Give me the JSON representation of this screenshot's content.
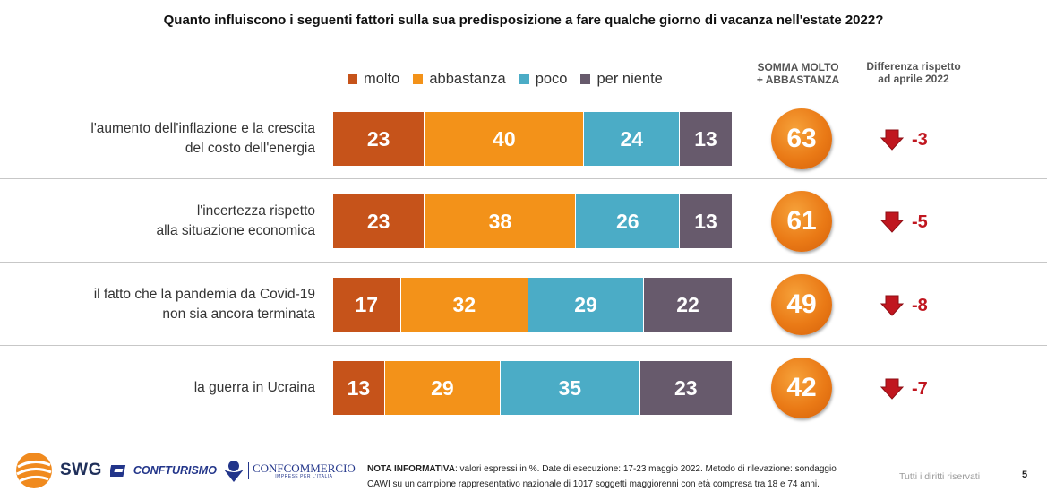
{
  "title": "Quanto influiscono i seguenti fattori sulla sua predisposizione a fare qualche giorno di vacanza nell'estate 2022?",
  "legend": [
    {
      "label": "molto",
      "color": "#c6531a"
    },
    {
      "label": "abbastanza",
      "color": "#f39219"
    },
    {
      "label": "poco",
      "color": "#4bacc6"
    },
    {
      "label": "per niente",
      "color": "#675a6c"
    }
  ],
  "column_headers": {
    "sum": [
      "SOMMA MOLTO",
      "+ ABBASTANZA"
    ],
    "diff": [
      "Differenza rispetto",
      "ad aprile 2022"
    ]
  },
  "chart_data": {
    "type": "bar",
    "orientation": "horizontal",
    "stacked": true,
    "categories": [
      [
        "l'aumento dell'inflazione e la crescita",
        "del costo dell'energia"
      ],
      [
        "l'incertezza rispetto",
        "alla situazione economica"
      ],
      [
        "il fatto che la pandemia da Covid-19",
        "non sia ancora terminata"
      ],
      [
        "la guerra in Ucraina"
      ]
    ],
    "series": [
      {
        "name": "molto",
        "values": [
          23,
          23,
          17,
          13
        ]
      },
      {
        "name": "abbastanza",
        "values": [
          40,
          38,
          32,
          29
        ]
      },
      {
        "name": "poco",
        "values": [
          24,
          26,
          29,
          35
        ]
      },
      {
        "name": "per niente",
        "values": [
          13,
          13,
          22,
          23
        ]
      }
    ],
    "sum_molto_abbastanza": [
      63,
      61,
      49,
      42
    ],
    "diff_vs_april_2022": [
      "-3",
      "-5",
      "-8",
      "-7"
    ],
    "xlim": [
      0,
      100
    ],
    "unit": "%"
  },
  "footer": {
    "swg": "SWG",
    "confturismo": "CONFTURISMO",
    "confcommercio": "CONFCOMMERCIO",
    "confcommercio_sub": "IMPRESE PER L'ITALIA",
    "note_bold": "NOTA INFORMATIVA",
    "note_line1": ": valori espressi in %. Date di esecuzione: 17-23 maggio 2022. Metodo di rilevazione: sondaggio",
    "note_line2": "CAWI su un campione rappresentativo nazionale di 1017 soggetti maggiorenni con età compresa tra 18 e 74 anni.",
    "rights": "Tutti i diritti riservati",
    "page": "5"
  }
}
